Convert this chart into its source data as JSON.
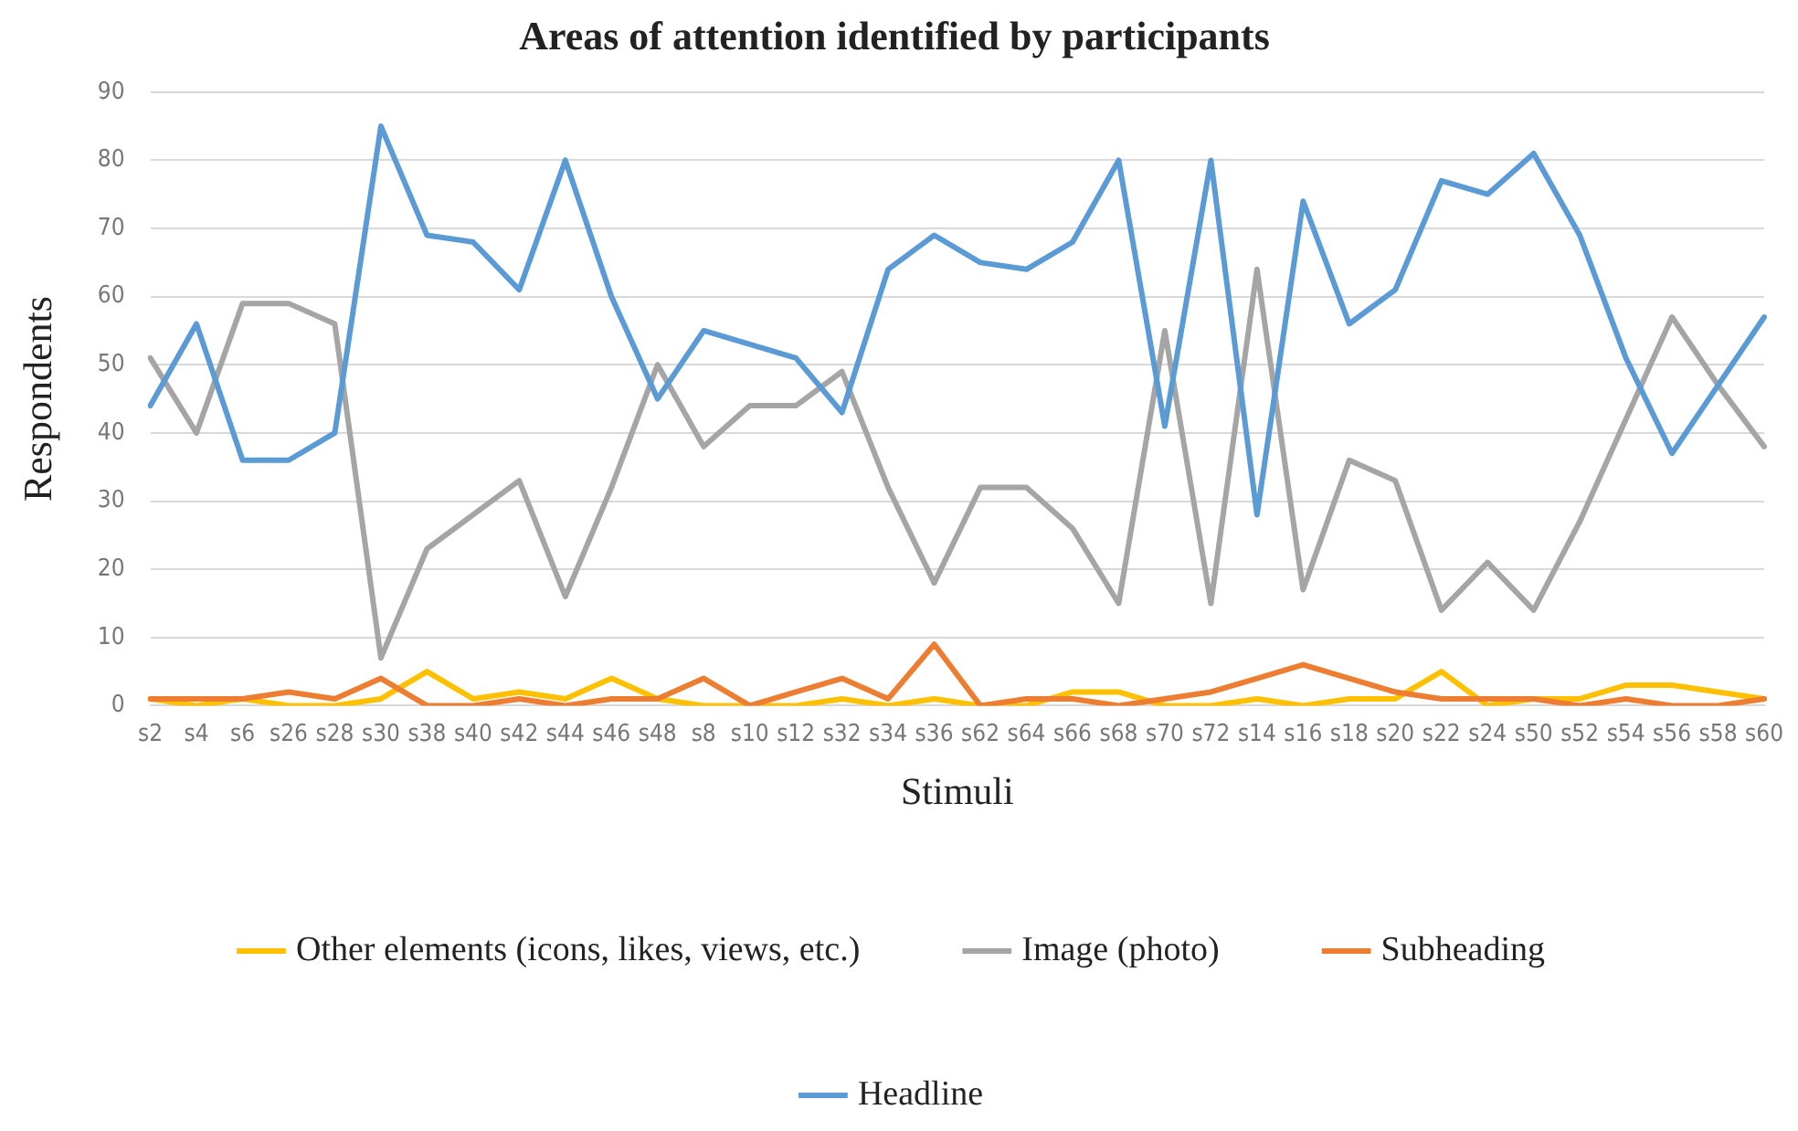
{
  "chart_data": {
    "type": "line",
    "title": "Areas of attention identified by participants",
    "xlabel": "Stimuli",
    "ylabel": "Respondents",
    "categories": [
      "s2",
      "s4",
      "s6",
      "s26",
      "s28",
      "s30",
      "s38",
      "s40",
      "s42",
      "s44",
      "s46",
      "s48",
      "s8",
      "s10",
      "s12",
      "s32",
      "s34",
      "s36",
      "s62",
      "s64",
      "s66",
      "s68",
      "s70",
      "s72",
      "s14",
      "s16",
      "s18",
      "s20",
      "s22",
      "s24",
      "s50",
      "s52",
      "s54",
      "s56",
      "s58",
      "s60"
    ],
    "series": [
      {
        "name": "Other elements (icons, likes, views, etc.)",
        "color": "#ffc000",
        "values": [
          1,
          0,
          1,
          0,
          0,
          1,
          5,
          1,
          2,
          1,
          4,
          1,
          0,
          0,
          0,
          1,
          0,
          1,
          0,
          0,
          2,
          2,
          0,
          0,
          1,
          0,
          1,
          1,
          5,
          0,
          1,
          1,
          3,
          3,
          2,
          1
        ]
      },
      {
        "name": "Image (photo)",
        "color": "#a5a5a5",
        "values": [
          51,
          40,
          59,
          59,
          56,
          7,
          23,
          28,
          33,
          16,
          32,
          50,
          38,
          44,
          44,
          49,
          32,
          18,
          32,
          32,
          26,
          15,
          55,
          15,
          64,
          17,
          36,
          33,
          14,
          21,
          14,
          27,
          42,
          57,
          47,
          38
        ]
      },
      {
        "name": "Subheading",
        "color": "#ed7d31",
        "values": [
          1,
          1,
          1,
          2,
          1,
          4,
          0,
          0,
          1,
          0,
          1,
          1,
          4,
          0,
          2,
          4,
          1,
          9,
          0,
          1,
          1,
          0,
          1,
          2,
          4,
          6,
          4,
          2,
          1,
          1,
          1,
          0,
          1,
          0,
          0,
          1
        ]
      },
      {
        "name": "Headline",
        "color": "#5b9bd5",
        "values": [
          44,
          56,
          36,
          36,
          40,
          85,
          69,
          68,
          61,
          80,
          60,
          45,
          55,
          53,
          51,
          43,
          64,
          69,
          65,
          64,
          68,
          80,
          41,
          80,
          28,
          74,
          56,
          61,
          77,
          75,
          81,
          69,
          51,
          37,
          47,
          57
        ]
      }
    ],
    "ylim": [
      0,
      90
    ],
    "yticks": [
      0,
      10,
      20,
      30,
      40,
      50,
      60,
      70,
      80,
      90
    ],
    "grid": "y",
    "legend": "bottom",
    "marker": "none",
    "line_style": "solid"
  }
}
